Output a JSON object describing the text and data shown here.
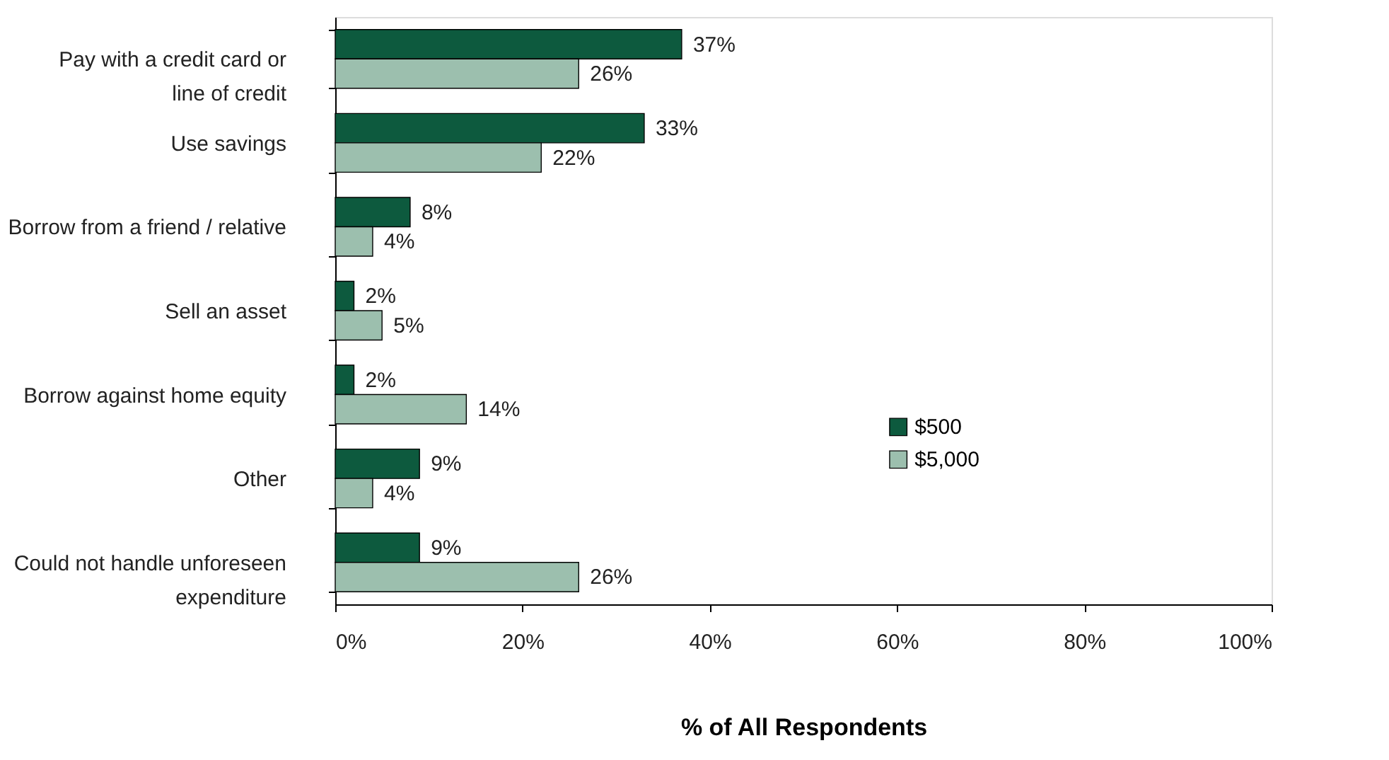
{
  "chart_data": {
    "type": "bar",
    "orientation": "horizontal",
    "xlabel": "% of All Respondents",
    "categories": [
      "Pay with a credit card or\nline of credit",
      "Use savings",
      "Borrow from a friend / relative",
      "Sell an asset",
      "Borrow against home equity",
      "Other",
      "Could not handle unforeseen\nexpenditure"
    ],
    "series": [
      {
        "name": "$500",
        "color": "#0d5a3e",
        "values": [
          37,
          33,
          8,
          2,
          2,
          9,
          9
        ],
        "value_labels": [
          "37%",
          "33%",
          "8%",
          "2%",
          "2%",
          "9%",
          "9%"
        ]
      },
      {
        "name": "$5,000",
        "color": "#9cbfae",
        "values": [
          26,
          22,
          4,
          5,
          14,
          4,
          26
        ],
        "value_labels": [
          "26%",
          "22%",
          "4%",
          "5%",
          "14%",
          "4%",
          "26%"
        ]
      }
    ],
    "xlim": [
      0,
      100
    ],
    "xticks": [
      {
        "value": 0,
        "label": "0%"
      },
      {
        "value": 20,
        "label": "20%"
      },
      {
        "value": 40,
        "label": "40%"
      },
      {
        "value": 60,
        "label": "60%"
      },
      {
        "value": 80,
        "label": "80%"
      },
      {
        "value": 100,
        "label": "100%"
      }
    ],
    "grid": false,
    "legend": "right",
    "data_labels": true
  }
}
